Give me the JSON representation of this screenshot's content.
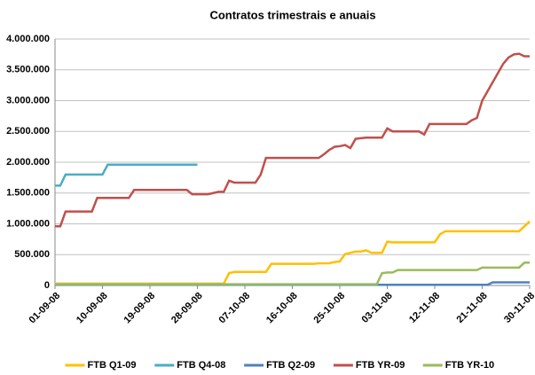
{
  "chart_data": {
    "type": "line",
    "title": "Contratos trimestrais e anuais",
    "categories": [
      "01-09-08",
      null,
      null,
      null,
      null,
      null,
      null,
      null,
      null,
      "10-09-08",
      null,
      null,
      null,
      null,
      null,
      null,
      null,
      null,
      "19-09-08",
      null,
      null,
      null,
      null,
      null,
      null,
      null,
      null,
      "28-09-08",
      null,
      null,
      null,
      null,
      null,
      null,
      null,
      null,
      "07-10-08",
      null,
      null,
      null,
      null,
      null,
      null,
      null,
      null,
      "16-10-08",
      null,
      null,
      null,
      null,
      null,
      null,
      null,
      null,
      "25-10-08",
      null,
      null,
      null,
      null,
      null,
      null,
      null,
      null,
      "03-11-08",
      null,
      null,
      null,
      null,
      null,
      null,
      null,
      null,
      "12-11-08",
      null,
      null,
      null,
      null,
      null,
      null,
      null,
      null,
      "21-11-08",
      null,
      null,
      null,
      null,
      null,
      null,
      null,
      null,
      "30-11-08"
    ],
    "ylim": [
      0,
      4000000
    ],
    "yticks": [
      0,
      {
        "value": 500000,
        "label": "500.000"
      },
      {
        "value": 1000000,
        "label": "1.000.000"
      },
      {
        "value": 1500000,
        "label": "1.500.000"
      },
      {
        "value": 2000000,
        "label": "2.000.000"
      },
      {
        "value": 2500000,
        "label": "2.500.000"
      },
      {
        "value": 3000000,
        "label": "3.000.000"
      },
      {
        "value": 3500000,
        "label": "3.500.000"
      },
      {
        "value": 4000000,
        "label": "4.000.000"
      }
    ],
    "grid": true,
    "legend": "bottom",
    "series": [
      {
        "name": "FTB Q1-09",
        "color": "#ffc000",
        "values": [
          30000,
          30000,
          30000,
          30000,
          30000,
          30000,
          30000,
          30000,
          30000,
          30000,
          30000,
          30000,
          30000,
          30000,
          30000,
          30000,
          30000,
          30000,
          30000,
          30000,
          30000,
          30000,
          30000,
          30000,
          30000,
          30000,
          30000,
          30000,
          30000,
          30000,
          30000,
          30000,
          30000,
          200000,
          220000,
          220000,
          220000,
          220000,
          220000,
          220000,
          220000,
          350000,
          350000,
          350000,
          350000,
          350000,
          350000,
          350000,
          350000,
          350000,
          360000,
          360000,
          360000,
          380000,
          390000,
          510000,
          530000,
          550000,
          550000,
          570000,
          530000,
          530000,
          530000,
          710000,
          700000,
          700000,
          700000,
          700000,
          700000,
          700000,
          700000,
          700000,
          700000,
          830000,
          880000,
          880000,
          880000,
          880000,
          880000,
          880000,
          880000,
          880000,
          880000,
          880000,
          880000,
          880000,
          880000,
          880000,
          880000,
          960000,
          1040000
        ]
      },
      {
        "name": "FTB Q4-08",
        "color": "#4bacc6",
        "values": [
          1620000,
          1620000,
          1800000,
          1800000,
          1800000,
          1800000,
          1800000,
          1800000,
          1800000,
          1800000,
          1960000,
          1960000,
          1960000,
          1960000,
          1960000,
          1960000,
          1960000,
          1960000,
          1960000,
          1960000,
          1960000,
          1960000,
          1960000,
          1960000,
          1960000,
          1960000,
          1960000,
          1960000,
          null,
          null,
          null,
          null,
          null,
          null,
          null,
          null,
          null,
          null,
          null,
          null,
          null,
          null,
          null,
          null,
          null,
          null,
          null,
          null,
          null,
          null,
          null,
          null,
          null,
          null,
          null,
          null,
          null,
          null,
          null,
          null,
          null,
          null,
          null,
          null,
          null,
          null,
          null,
          null,
          null,
          null,
          null,
          null,
          null,
          null,
          null,
          null,
          null,
          null,
          null,
          null,
          null,
          null,
          null,
          null,
          null,
          null,
          null,
          null,
          null,
          null,
          null
        ]
      },
      {
        "name": "FTB Q2-09",
        "color": "#4f81bd",
        "values": [
          10000,
          10000,
          10000,
          10000,
          10000,
          10000,
          10000,
          10000,
          10000,
          10000,
          10000,
          10000,
          10000,
          10000,
          10000,
          10000,
          10000,
          10000,
          10000,
          10000,
          10000,
          10000,
          10000,
          10000,
          10000,
          10000,
          10000,
          10000,
          10000,
          10000,
          10000,
          10000,
          10000,
          10000,
          10000,
          10000,
          10000,
          10000,
          10000,
          10000,
          10000,
          10000,
          10000,
          10000,
          10000,
          10000,
          10000,
          10000,
          10000,
          10000,
          10000,
          10000,
          10000,
          10000,
          10000,
          10000,
          10000,
          10000,
          10000,
          10000,
          10000,
          10000,
          10000,
          10000,
          10000,
          10000,
          10000,
          10000,
          10000,
          10000,
          10000,
          10000,
          10000,
          10000,
          10000,
          10000,
          10000,
          10000,
          10000,
          10000,
          10000,
          10000,
          10000,
          50000,
          50000,
          50000,
          50000,
          50000,
          50000,
          50000,
          50000
        ]
      },
      {
        "name": "FTB YR-09",
        "color": "#c0504d",
        "values": [
          960000,
          960000,
          1200000,
          1200000,
          1200000,
          1200000,
          1200000,
          1200000,
          1420000,
          1420000,
          1420000,
          1420000,
          1420000,
          1420000,
          1420000,
          1550000,
          1550000,
          1550000,
          1550000,
          1550000,
          1550000,
          1550000,
          1550000,
          1550000,
          1550000,
          1550000,
          1480000,
          1480000,
          1480000,
          1480000,
          1500000,
          1520000,
          1520000,
          1700000,
          1670000,
          1670000,
          1670000,
          1670000,
          1670000,
          1800000,
          2070000,
          2070000,
          2070000,
          2070000,
          2070000,
          2070000,
          2070000,
          2070000,
          2070000,
          2070000,
          2070000,
          2130000,
          2200000,
          2250000,
          2260000,
          2280000,
          2230000,
          2380000,
          2390000,
          2400000,
          2400000,
          2400000,
          2400000,
          2550000,
          2500000,
          2500000,
          2500000,
          2500000,
          2500000,
          2500000,
          2450000,
          2620000,
          2620000,
          2620000,
          2620000,
          2620000,
          2620000,
          2620000,
          2620000,
          2680000,
          2720000,
          3000000,
          3150000,
          3300000,
          3450000,
          3600000,
          3700000,
          3750000,
          3760000,
          3720000,
          3720000
        ]
      },
      {
        "name": "FTB YR-10",
        "color": "#9bbb59",
        "values": [
          20000,
          20000,
          20000,
          20000,
          20000,
          20000,
          20000,
          20000,
          20000,
          20000,
          20000,
          20000,
          20000,
          20000,
          20000,
          20000,
          20000,
          20000,
          20000,
          20000,
          20000,
          20000,
          20000,
          20000,
          20000,
          20000,
          20000,
          20000,
          20000,
          20000,
          20000,
          20000,
          20000,
          20000,
          20000,
          20000,
          20000,
          20000,
          20000,
          20000,
          20000,
          20000,
          20000,
          20000,
          20000,
          20000,
          20000,
          20000,
          20000,
          20000,
          20000,
          20000,
          20000,
          20000,
          20000,
          20000,
          20000,
          20000,
          20000,
          20000,
          20000,
          20000,
          200000,
          210000,
          210000,
          250000,
          250000,
          250000,
          250000,
          250000,
          250000,
          250000,
          250000,
          250000,
          250000,
          250000,
          250000,
          250000,
          250000,
          250000,
          250000,
          290000,
          290000,
          290000,
          290000,
          290000,
          290000,
          290000,
          290000,
          370000,
          370000
        ]
      }
    ]
  }
}
